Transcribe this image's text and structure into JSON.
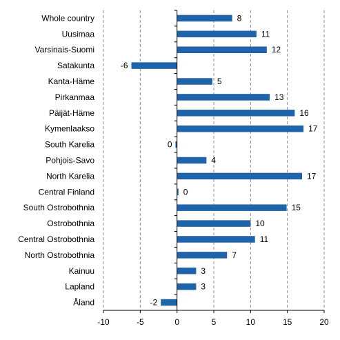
{
  "chart_data": {
    "type": "bar",
    "orientation": "horizontal",
    "title": "",
    "xlabel": "",
    "ylabel": "",
    "xlim": [
      -10,
      20
    ],
    "x_ticks": [
      -10,
      -5,
      0,
      5,
      10,
      15,
      20
    ],
    "grid": "vertical",
    "legend": "none",
    "bar_color": "#1f63a8",
    "grid_color": "#8c8c8c",
    "categories": [
      "Whole country",
      "Uusimaa",
      "Varsinais-Suomi",
      "Satakunta",
      "Kanta-Häme",
      "Pirkanmaa",
      "Päijät-Häme",
      "Kymenlaakso",
      "South Karelia",
      "Pohjois-Savo",
      "North Karelia",
      "Central Finland",
      "South Ostrobothnia",
      "Ostrobothnia",
      "Central Ostrobothnia",
      "North Ostrobothnia",
      "Kainuu",
      "Lapland",
      "Åland"
    ],
    "values": [
      7.5,
      10.8,
      12.2,
      -6.2,
      4.8,
      12.6,
      16.0,
      17.2,
      -0.2,
      4.0,
      17.0,
      0.2,
      14.9,
      10.0,
      10.6,
      6.8,
      2.6,
      2.6,
      -2.2
    ],
    "data_labels": [
      "8",
      "11",
      "12",
      "-6",
      "5",
      "13",
      "16",
      "17",
      "0",
      "4",
      "17",
      "0",
      "15",
      "10",
      "11",
      "7",
      "3",
      "3",
      "-2"
    ]
  }
}
